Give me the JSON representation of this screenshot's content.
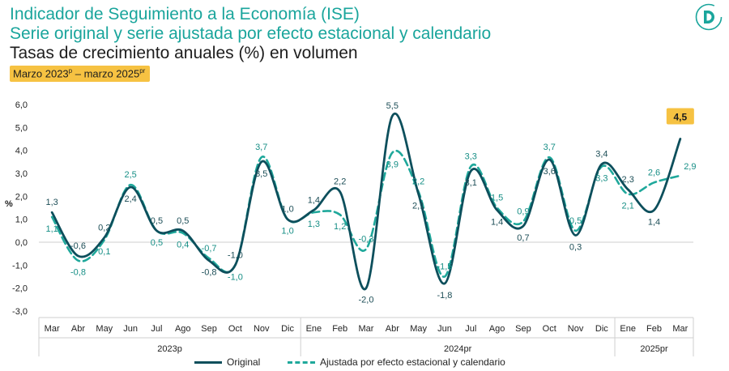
{
  "header": {
    "title_line1": "Indicador de Seguimiento a la Economía (ISE)",
    "title_line2": "Serie original y serie ajustada por efecto estacional y calendario",
    "title_line3": "Tasas de crecimiento anuales (%) en volumen",
    "period_main": "Marzo 2023",
    "period_sup1": "p",
    "period_mid": " – marzo 2025",
    "period_sup2": "pr"
  },
  "logo": {
    "icon": "dane-d-logo-icon",
    "color": "#1aa59c"
  },
  "colors": {
    "original": "#0d4f5c",
    "adjusted": "#1fa89b",
    "highlight": "#f6c242",
    "grid": "#cfcfcf"
  },
  "chart_data": {
    "type": "line",
    "ylabel": "%",
    "ylim": [
      -3.0,
      6.0
    ],
    "yticks": [
      "-3,0",
      "-2,0",
      "-1,0",
      "0,0",
      "1,0",
      "2,0",
      "3,0",
      "4,0",
      "5,0",
      "6,0"
    ],
    "categories": [
      "Mar",
      "Abr",
      "May",
      "Jun",
      "Jul",
      "Ago",
      "Sep",
      "Oct",
      "Nov",
      "Dic",
      "Ene",
      "Feb",
      "Mar",
      "Abr",
      "May",
      "Jun",
      "Jul",
      "Ago",
      "Sep",
      "Oct",
      "Nov",
      "Dic",
      "Ene",
      "Feb",
      "Mar"
    ],
    "year_groups": [
      {
        "label": "2023p",
        "count": 10
      },
      {
        "label": "2024pr",
        "count": 12
      },
      {
        "label": "2025pr",
        "count": 3
      }
    ],
    "series": [
      {
        "name": "Original",
        "values": [
          1.3,
          -0.6,
          0.2,
          2.4,
          0.5,
          0.5,
          -0.8,
          -1.0,
          3.5,
          1.0,
          1.4,
          2.2,
          -2.0,
          5.5,
          2.1,
          -1.8,
          3.1,
          1.4,
          0.7,
          3.6,
          0.3,
          3.4,
          2.3,
          1.4,
          4.5
        ],
        "labels": [
          "1,3",
          "-0,6",
          "0,2",
          "2,4",
          "0,5",
          "0,5",
          "-0,8",
          "-1,0",
          "3,5",
          "1,0",
          "1,4",
          "2,2",
          "-2,0",
          "5,5",
          "2,1",
          "-1,8",
          "3,1",
          "1,4",
          "0,7",
          "3,6",
          "0,3",
          "3,4",
          "2,3",
          "1,4",
          "4,5"
        ]
      },
      {
        "name": "Ajustada por efecto estacional y calendario",
        "values": [
          1.1,
          -0.8,
          0.1,
          2.5,
          0.5,
          0.4,
          -0.7,
          -1.0,
          3.7,
          1.0,
          1.3,
          1.2,
          -0.3,
          3.9,
          2.2,
          -1.5,
          3.3,
          1.5,
          0.9,
          3.7,
          0.5,
          3.3,
          2.1,
          2.6,
          2.9
        ],
        "labels": [
          "1,1",
          "-0,8",
          "0,1",
          "2,5",
          "0,5",
          "0,4",
          "-0,7",
          "-1,0",
          "3,7",
          "1,0",
          "1,3",
          "1,2",
          "-0,3",
          "3,9",
          "2,2",
          "-1,5",
          "3,3",
          "1,5",
          "0,9",
          "3,7",
          "0,5",
          "3,3",
          "2,1",
          "2,6",
          "2,9"
        ]
      }
    ],
    "highlight_last": "4,5",
    "legend_placement": "bottom"
  }
}
